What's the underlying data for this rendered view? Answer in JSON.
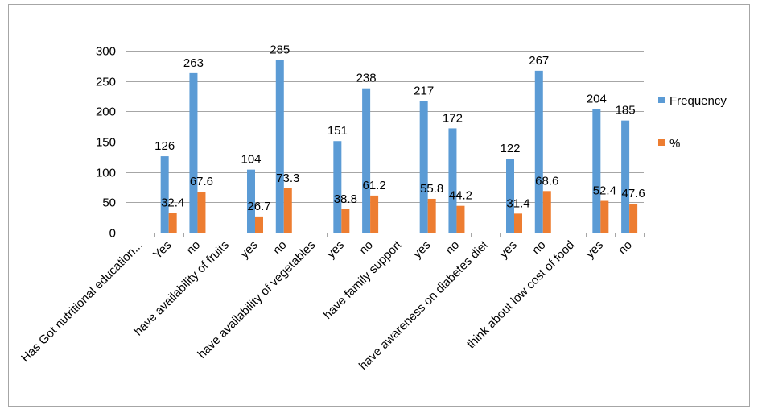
{
  "chart_data": {
    "type": "bar",
    "title": "",
    "xlabel": "",
    "ylabel": "",
    "ylim": [
      0,
      300
    ],
    "yticks": [
      0,
      50,
      100,
      150,
      200,
      250,
      300
    ],
    "grid": true,
    "legend_position": "right",
    "categories": [
      "Has Got nutritional education...",
      "Yes",
      "no",
      "have availability of fruits",
      "yes",
      "no",
      "have availability of vegetables",
      "yes",
      "no",
      "have family support",
      "yes",
      "no",
      "have awareness on diabetes diet",
      "yes",
      "no",
      "think about  low cost of food",
      "yes",
      "no"
    ],
    "series": [
      {
        "name": "Frequency",
        "color": "#5B9BD5",
        "values": [
          null,
          126,
          263,
          null,
          104,
          285,
          null,
          151,
          238,
          null,
          217,
          172,
          null,
          122,
          267,
          null,
          204,
          185
        ]
      },
      {
        "name": "%",
        "color": "#ED7D31",
        "values": [
          null,
          32.4,
          67.6,
          null,
          26.7,
          73.3,
          null,
          38.8,
          61.2,
          null,
          55.8,
          44.2,
          null,
          31.4,
          68.6,
          null,
          52.4,
          47.6
        ]
      }
    ]
  }
}
